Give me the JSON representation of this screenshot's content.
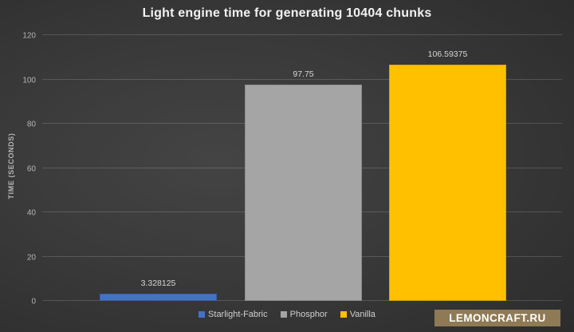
{
  "chart_data": {
    "type": "bar",
    "title": "Light engine time for generating 10404 chunks",
    "xlabel": "",
    "ylabel": "TIME (SECONDS)",
    "ylim": [
      0,
      120
    ],
    "yticks": [
      0,
      20,
      40,
      60,
      80,
      100,
      120
    ],
    "grid": true,
    "legend_position": "bottom",
    "series": [
      {
        "name": "Starlight-Fabric",
        "value": 3.328125,
        "data_label": "3.328125",
        "color": "#4472c4"
      },
      {
        "name": "Phosphor",
        "value": 97.75,
        "data_label": "97.75",
        "color": "#a5a5a5"
      },
      {
        "name": "Vanilla",
        "value": 106.59375,
        "data_label": "106.59375",
        "color": "#ffc000"
      }
    ]
  },
  "watermark": {
    "text": "LEMONCRAFT.RU",
    "background": "#8e7a55",
    "text_color": "#ffffff"
  },
  "colors": {
    "background_center": "#434343",
    "background_edge": "#292929",
    "gridline": "rgba(255,255,255,0.16)",
    "title_text": "#f2f2f2",
    "tick_text": "#b5b5b5",
    "data_label_text": "#d6d6d6",
    "legend_text": "#d0d0d0"
  }
}
